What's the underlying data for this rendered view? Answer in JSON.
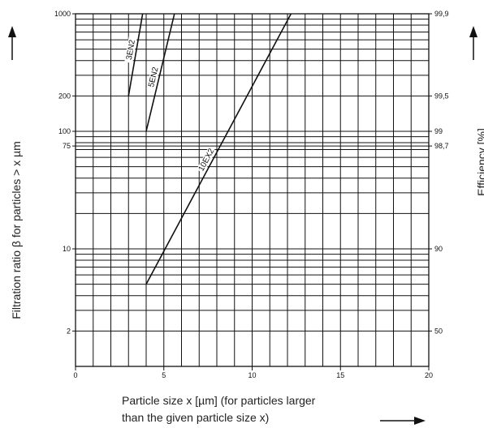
{
  "chart_data": {
    "type": "line",
    "xlabel_line1": "Particle size x [µm] (for particles larger",
    "xlabel_line2": "than the given particle size x)",
    "ylabel": "Filtration ratio β for particles > x µm",
    "ylabel_right": "Efficiency  [%]",
    "xlim": [
      0,
      20
    ],
    "ylim": [
      1,
      1000
    ],
    "yscale": "log",
    "x_ticks": [
      0,
      5,
      10,
      15,
      20
    ],
    "x_tick_labels": [
      "0",
      "5",
      "10",
      "15",
      "20"
    ],
    "y_ticks": [
      2,
      10,
      75,
      100,
      200,
      1000
    ],
    "y_tick_labels": [
      "2",
      "10",
      "75",
      "100",
      "200",
      "1000"
    ],
    "right_ticks": [
      {
        "beta": 2,
        "label": "50"
      },
      {
        "beta": 10,
        "label": "90"
      },
      {
        "beta": 75,
        "label": "98,7"
      },
      {
        "beta": 100,
        "label": "99"
      },
      {
        "beta": 200,
        "label": "99,5"
      },
      {
        "beta": 1000,
        "label": "99,9"
      }
    ],
    "grid": true,
    "series": [
      {
        "name": "3EN2",
        "x": [
          3.0,
          3.8
        ],
        "y": [
          200,
          1000
        ]
      },
      {
        "name": "5EN2",
        "x": [
          4.0,
          5.6
        ],
        "y": [
          100,
          1000
        ]
      },
      {
        "name": "10EX2",
        "x": [
          4.0,
          12.2
        ],
        "y": [
          5,
          1000
        ]
      }
    ]
  }
}
